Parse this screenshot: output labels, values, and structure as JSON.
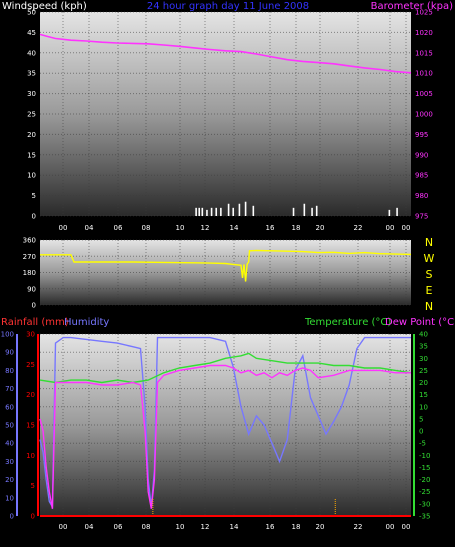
{
  "title": "24 hour graph day   11 June 2008",
  "colors": {
    "background": "#000000",
    "wind": "#ffffff",
    "barometer": "#ff33ff",
    "direction": "#ffff00",
    "rain_label": "#ff3333",
    "rain_line": "#ff0000",
    "rain_marks": "#ffaa00",
    "humidity": "#7777ff",
    "temperature": "#33dd33",
    "dewpoint": "#ff33ff",
    "title": "#3333ff",
    "axis_text": "#ffffff"
  },
  "chart_data": [
    {
      "type": "line",
      "labels": {
        "left": "Windspeed (kph)",
        "right": "Barometer (kpa)"
      },
      "x_ticks": [
        "00",
        "04",
        "06",
        "08",
        "10",
        "12",
        "14",
        "16",
        "18",
        "20",
        "22",
        "00",
        "00"
      ],
      "left_axis": {
        "ticks": [
          0,
          5,
          10,
          15,
          20,
          25,
          30,
          35,
          40,
          45,
          50
        ],
        "ylim": [
          0,
          50
        ]
      },
      "right_axis": {
        "ticks": [
          975,
          980,
          985,
          990,
          995,
          1000,
          1005,
          1010,
          1015,
          1020,
          1025
        ],
        "ylim": [
          975,
          1025
        ]
      },
      "series": [
        {
          "name": "Barometer (kpa)",
          "axis": "right",
          "x": [
            0,
            0.5,
            1,
            2,
            3,
            4,
            5,
            6,
            7,
            8,
            9,
            10,
            11,
            12,
            13,
            14,
            15,
            16,
            17,
            18,
            19,
            20,
            21,
            22,
            23,
            24
          ],
          "y": [
            1019.5,
            1019,
            1018.5,
            1018.1,
            1017.9,
            1017.6,
            1017.4,
            1017.3,
            1017.2,
            1016.9,
            1016.6,
            1016.2,
            1015.8,
            1015.5,
            1015.3,
            1014.7,
            1014.0,
            1013.3,
            1012.9,
            1012.6,
            1012.3,
            1011.8,
            1011.3,
            1010.9,
            1010.4,
            1010.1
          ]
        },
        {
          "name": "Windspeed (kph)",
          "axis": "left",
          "kind": "bar",
          "x": [
            10.1,
            10.3,
            10.5,
            10.8,
            11.1,
            11.4,
            11.7,
            12.2,
            12.5,
            12.9,
            13.3,
            13.8,
            16.4,
            17.1,
            17.6,
            17.9,
            22.6,
            23.1
          ],
          "y": [
            2,
            2,
            2,
            1.5,
            2,
            2,
            2,
            3,
            2,
            3,
            3.5,
            2.5,
            2,
            3,
            2,
            2.5,
            1.5,
            2
          ]
        }
      ]
    },
    {
      "type": "line",
      "labels": {
        "directions": [
          "N",
          "W",
          "S",
          "E",
          "N"
        ]
      },
      "x_ticks": [],
      "left_axis": {
        "ticks": [
          0,
          90,
          180,
          270,
          360
        ],
        "ylim": [
          0,
          360
        ]
      },
      "series": [
        {
          "name": "Wind direction",
          "x": [
            0,
            2,
            2.2,
            4,
            6,
            8,
            10,
            11,
            12,
            12.5,
            13,
            13.1,
            13.2,
            13.3,
            13.4,
            13.5,
            13.55,
            14,
            15,
            16,
            17,
            18,
            19,
            20,
            21,
            22,
            23,
            24
          ],
          "y": [
            278,
            278,
            238,
            238,
            238,
            236,
            234,
            232,
            230,
            225,
            220,
            150,
            225,
            130,
            225,
            240,
            300,
            302,
            300,
            298,
            296,
            290,
            292,
            286,
            290,
            284,
            282,
            280
          ]
        }
      ]
    },
    {
      "type": "line",
      "labels": {
        "rain": "Rainfall (mm)",
        "humidity": "Humidity",
        "temperature": "Temperature (°C)",
        "dewpoint": "Dew Point (°C)"
      },
      "x_ticks": [
        "00",
        "04",
        "06",
        "08",
        "10",
        "12",
        "14",
        "16",
        "18",
        "20",
        "22",
        "00",
        "00"
      ],
      "humidity_axis": {
        "ticks": [
          0,
          10,
          20,
          30,
          40,
          50,
          60,
          70,
          80,
          90,
          100
        ],
        "ylim": [
          0,
          100
        ]
      },
      "rain_axis": {
        "ticks": [
          0,
          5,
          10,
          15,
          20,
          25,
          30
        ],
        "ylim": [
          0,
          30
        ]
      },
      "temp_axis": {
        "ticks": [
          -35,
          -30,
          -25,
          -20,
          -15,
          -10,
          -5,
          0,
          5,
          10,
          15,
          20,
          25,
          30,
          35,
          40
        ],
        "ylim": [
          -35,
          40
        ]
      },
      "series": [
        {
          "name": "Humidity",
          "axis": "humidity",
          "x": [
            0,
            0.2,
            0.4,
            0.6,
            0.8,
            1,
            1.5,
            2,
            4,
            5,
            6,
            6.5,
            6.8,
            7.0,
            7.2,
            7.4,
            7.6,
            8,
            9,
            10,
            11,
            12,
            12.5,
            13,
            13.5,
            14,
            14.5,
            15,
            15.5,
            16,
            16.5,
            17,
            17.5,
            18,
            18.5,
            19,
            19.5,
            20,
            20.5,
            21,
            22,
            23,
            24
          ],
          "y": [
            42,
            35,
            20,
            8,
            5,
            95,
            98,
            98,
            96,
            95,
            93,
            92,
            60,
            20,
            5,
            25,
            98,
            98,
            98,
            98,
            98,
            96,
            82,
            60,
            45,
            55,
            50,
            40,
            30,
            42,
            80,
            88,
            65,
            55,
            45,
            52,
            60,
            72,
            92,
            98,
            98,
            98,
            98
          ]
        },
        {
          "name": "Temperature (°C)",
          "axis": "temp",
          "x": [
            0,
            1,
            2,
            3,
            4,
            5,
            6,
            7,
            8,
            9,
            10,
            11,
            12,
            13,
            13.5,
            14,
            15,
            16,
            17,
            18,
            19,
            20,
            21,
            22,
            23,
            24
          ],
          "y": [
            21,
            20,
            21,
            21,
            20,
            21,
            20,
            21,
            24,
            26,
            27,
            28,
            30,
            31,
            32,
            30,
            29,
            28,
            28,
            28,
            27,
            27,
            26,
            26,
            25,
            24
          ]
        },
        {
          "name": "Dew Point (°C)",
          "axis": "temp",
          "x": [
            0,
            0.2,
            0.4,
            0.6,
            0.8,
            1,
            2,
            3,
            4,
            5,
            6,
            6.5,
            6.8,
            7.0,
            7.2,
            7.4,
            7.6,
            8,
            9,
            10,
            11,
            12,
            12.5,
            13,
            13.5,
            14,
            14.5,
            15,
            15.5,
            16,
            16.5,
            17,
            17.5,
            18,
            19,
            20,
            21,
            22,
            23,
            24
          ],
          "y": [
            5,
            0,
            -15,
            -25,
            -32,
            20,
            20,
            20,
            19,
            19,
            20,
            19,
            0,
            -25,
            -32,
            -20,
            20,
            23,
            25,
            26,
            27,
            27,
            26,
            24,
            25,
            23,
            24,
            22,
            24,
            23,
            25,
            26,
            25,
            22,
            23,
            25,
            25,
            25,
            24,
            24
          ]
        },
        {
          "name": "Rainfall (mm)",
          "axis": "rain",
          "x": [
            0,
            24
          ],
          "y": [
            0,
            0
          ]
        }
      ]
    }
  ]
}
